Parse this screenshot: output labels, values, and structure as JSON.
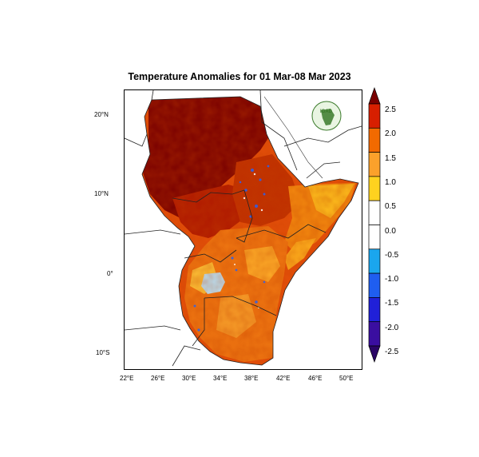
{
  "title": "Temperature Anomalies for 01 Mar-08 Mar 2023",
  "logo": {
    "label": "IGAD",
    "icon": "igad-logo-icon"
  },
  "lat_ticks": [
    "20°N",
    "10°N",
    "0°",
    "10°S"
  ],
  "lon_ticks": [
    "22°E",
    "26°E",
    "30°E",
    "34°E",
    "38°E",
    "42°E",
    "46°E",
    "50°E"
  ],
  "colorbar": {
    "labels": [
      "2.5",
      "2.0",
      "1.5",
      "1.0",
      "0.5",
      "0.0",
      "-0.5",
      "-1.0",
      "-1.5",
      "-2.0",
      "-2.5"
    ],
    "colors": [
      "#7a0000",
      "#d71f00",
      "#f26a00",
      "#fba12b",
      "#ffd21f",
      "#ffffff",
      "#ffffff",
      "#1aa6ee",
      "#1f5ef0",
      "#2020d8",
      "#3a0ea0",
      "#2a0566"
    ]
  }
}
